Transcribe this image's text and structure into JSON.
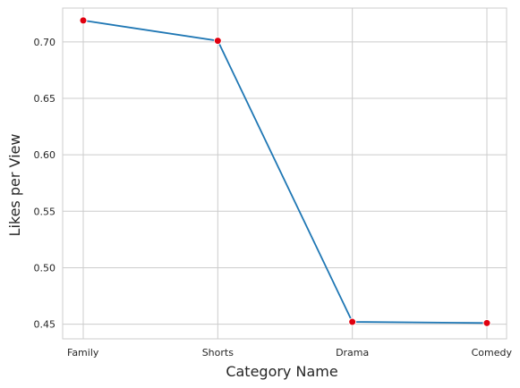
{
  "chart_data": {
    "type": "line",
    "title": "",
    "xlabel": "Category Name",
    "ylabel": "Likes per View",
    "categories": [
      "Family",
      "Shorts",
      "Drama",
      "Comedy"
    ],
    "series": [
      {
        "values": [
          0.719,
          0.701,
          0.452,
          0.451
        ],
        "color": "#1f77b4",
        "marker_color": "#e0000f"
      }
    ],
    "ylim": [
      0.437,
      0.73
    ],
    "yticks": [
      "0.45",
      "0.50",
      "0.55",
      "0.60",
      "0.65",
      "0.70"
    ],
    "grid": true,
    "legend": "none"
  }
}
